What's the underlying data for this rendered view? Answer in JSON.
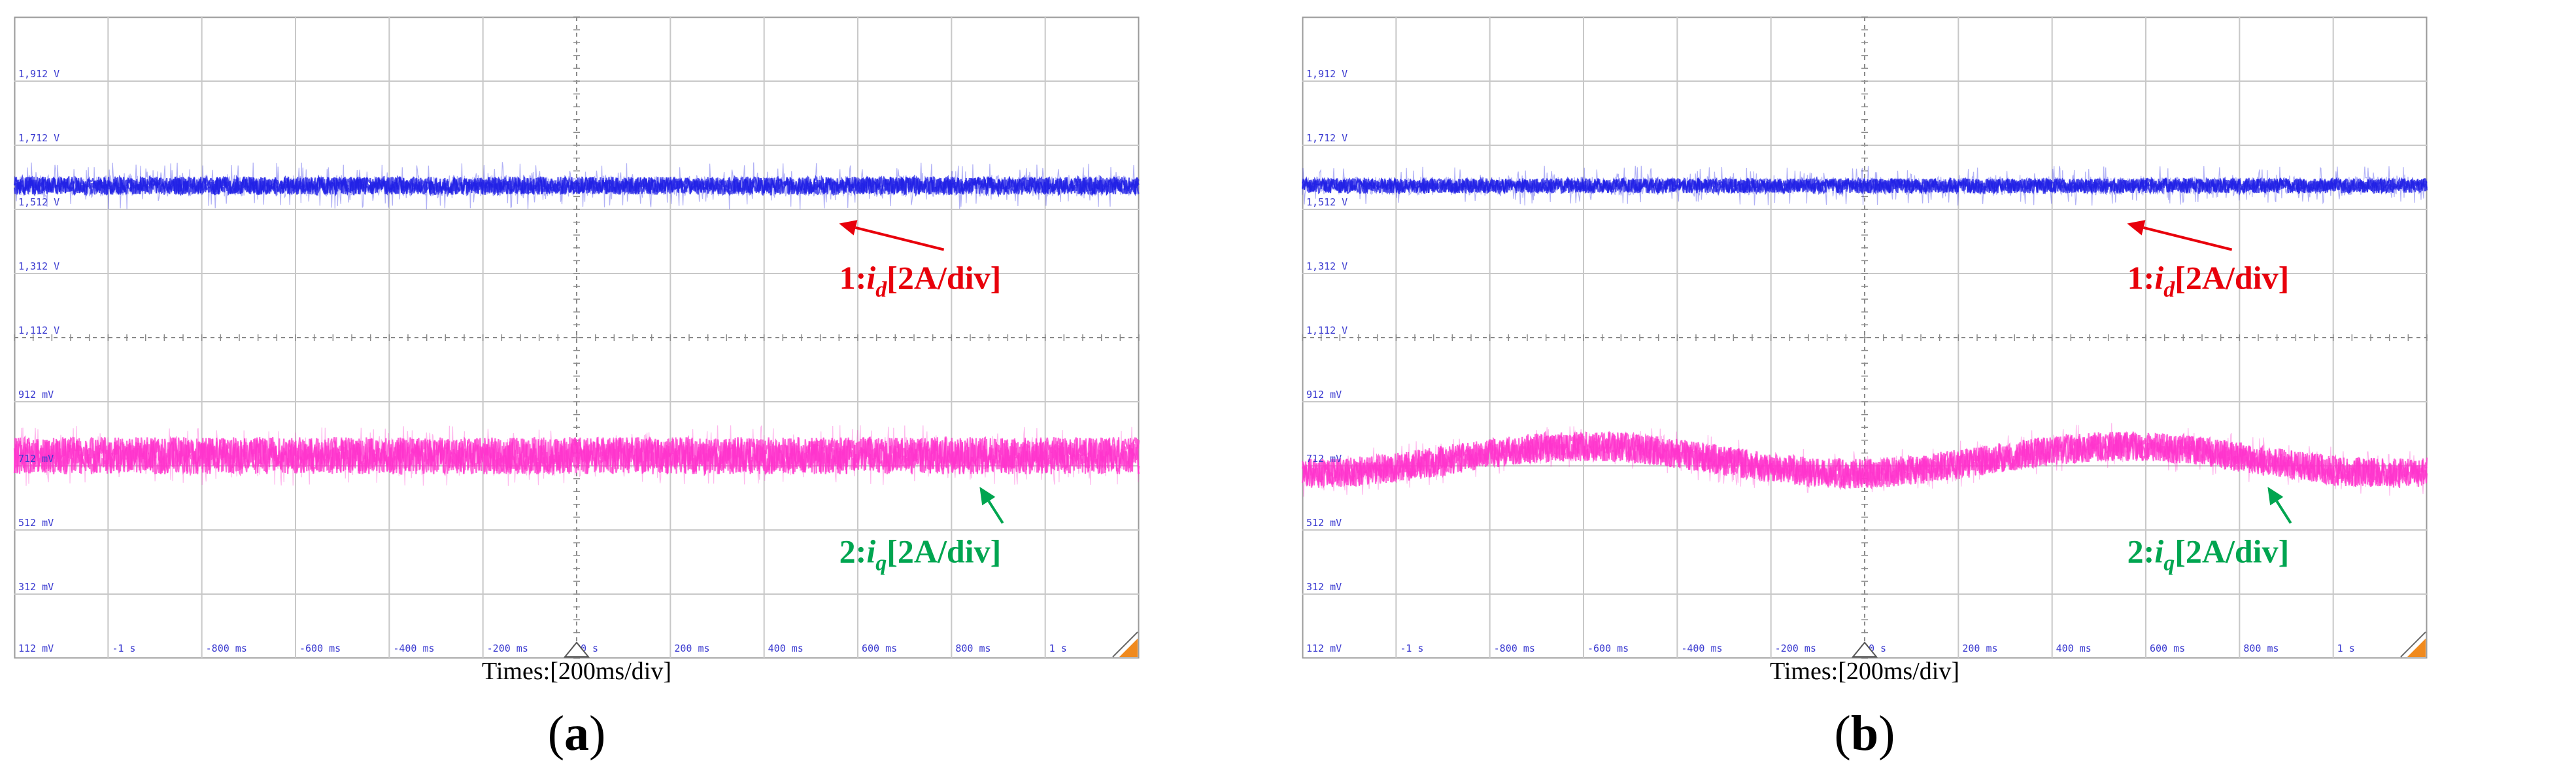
{
  "chart_data": [
    {
      "type": "line",
      "panel_label": "a",
      "xlabel": "Times:[200ms/div]",
      "x_ticks": [
        "-1 s",
        "-800 ms",
        "-600 ms",
        "-400 ms",
        "-200 ms",
        "0 s",
        "200 ms",
        "400 ms",
        "600 ms",
        "800 ms",
        "1 s"
      ],
      "y_ticks": [
        "112 mV",
        "312 mV",
        "512 mV",
        "712 mV",
        "912 mV",
        "1,112 V",
        "1,312 V",
        "1,512 V",
        "1,712 V",
        "1,912 V"
      ],
      "xlim": [
        -1.2,
        1.2
      ],
      "ylim": [
        0.112,
        2.012
      ],
      "grid": true,
      "series": [
        {
          "name": "1:i_d[2A/div]",
          "color": "#1f1fe6",
          "mean": 1.512,
          "noise_core": 0.012,
          "noise_spike": 0.07,
          "ripple": 0.0
        },
        {
          "name": "2:i_q[2A/div]",
          "color": "#ff33cc",
          "mean": 0.712,
          "noise_core": 0.025,
          "noise_spike": 0.09,
          "ripple": 0.0
        }
      ],
      "annotations": [
        {
          "series": 0,
          "prefix": "1:",
          "symbol": "i",
          "sub": "d",
          "suffix": "[2A/div]",
          "color": "#e8000b",
          "x_time": 0.7,
          "y_value": 1.245,
          "arrow_to_time": 0.56,
          "arrow_to_value": 1.4
        },
        {
          "series": 1,
          "prefix": "2:",
          "symbol": "i",
          "sub": "q",
          "suffix": "[2A/div]",
          "color": "#00a550",
          "x_time": 0.7,
          "y_value": 0.435,
          "arrow_to_time": 0.86,
          "arrow_to_value": 0.62
        }
      ]
    },
    {
      "type": "line",
      "panel_label": "b",
      "xlabel": "Times:[200ms/div]",
      "x_ticks": [
        "-1 s",
        "-800 ms",
        "-600 ms",
        "-400 ms",
        "-200 ms",
        "0 s",
        "200 ms",
        "400 ms",
        "600 ms",
        "800 ms",
        "1 s"
      ],
      "y_ticks": [
        "112 mV",
        "312 mV",
        "512 mV",
        "712 mV",
        "912 mV",
        "1,112 V",
        "1,312 V",
        "1,512 V",
        "1,712 V",
        "1,912 V"
      ],
      "xlim": [
        -1.2,
        1.2
      ],
      "ylim": [
        0.112,
        2.012
      ],
      "grid": true,
      "series": [
        {
          "name": "1:i_d[2A/div]",
          "color": "#1f1fe6",
          "mean": 1.512,
          "noise_core": 0.01,
          "noise_spike": 0.06,
          "ripple": 0.0
        },
        {
          "name": "2:i_q[2A/div]",
          "color": "#ff33cc",
          "mean": 0.7,
          "noise_core": 0.02,
          "noise_spike": 0.07,
          "ripple": 0.04
        }
      ],
      "annotations": [
        {
          "series": 0,
          "prefix": "1:",
          "symbol": "i",
          "sub": "d",
          "suffix": "[2A/div]",
          "color": "#e8000b",
          "x_time": 0.7,
          "y_value": 1.245,
          "arrow_to_time": 0.56,
          "arrow_to_value": 1.4
        },
        {
          "series": 1,
          "prefix": "2:",
          "symbol": "i",
          "sub": "q",
          "suffix": "[2A/div]",
          "color": "#00a550",
          "x_time": 0.7,
          "y_value": 0.435,
          "arrow_to_time": 0.86,
          "arrow_to_value": 0.62
        }
      ]
    }
  ]
}
